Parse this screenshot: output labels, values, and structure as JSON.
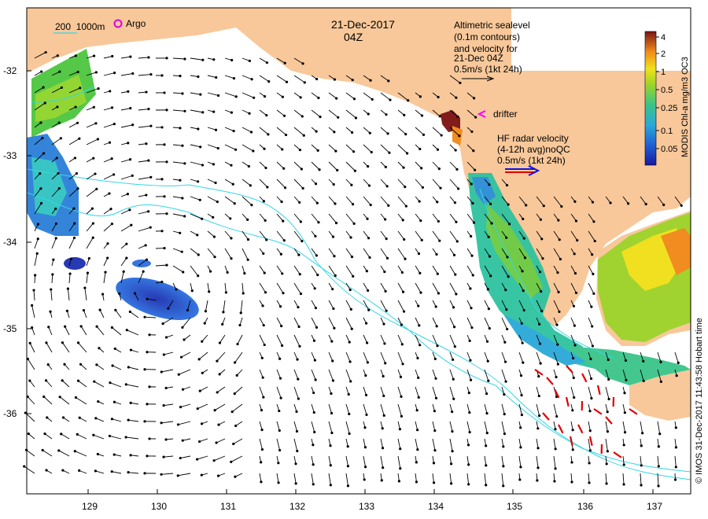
{
  "header": {
    "date": "21-Dec-2017",
    "time": "04Z"
  },
  "legend": {
    "isobath_label": "200  1000m",
    "argo_label": "Argo",
    "altimetry_lines": [
      "Altimetric sealevel",
      "(0.1m contours)",
      "and velocity for",
      "21-Dec 04Z",
      "0.5m/s (1kt 24h)"
    ],
    "drifter_label": "drifter",
    "hf_radar_lines": [
      "HF radar velocity",
      "(4-12h avg)noQC",
      "0.5m/s (1kt 24h)"
    ]
  },
  "colorbar": {
    "title": "MODIS Chl-a mg/m3 OC3",
    "ticks": [
      "4",
      "2",
      "1",
      "0.5",
      "0.25",
      "0.1",
      "0.05"
    ]
  },
  "axes": {
    "x_ticks": [
      "129",
      "130",
      "131",
      "132",
      "133",
      "134",
      "135",
      "136",
      "137"
    ],
    "y_ticks": [
      "-32",
      "-33",
      "-34",
      "-35",
      "-36"
    ]
  },
  "credit": "© IMOS 31-Dec-2017 11:43:58 Hobart time",
  "colors": {
    "land": "#f8c89a",
    "arrow": "#000000",
    "hf_arrow": "#e00000",
    "isobath": "#33d6e6",
    "argo": "#e000e0",
    "drifter": "#ff00ff"
  }
}
